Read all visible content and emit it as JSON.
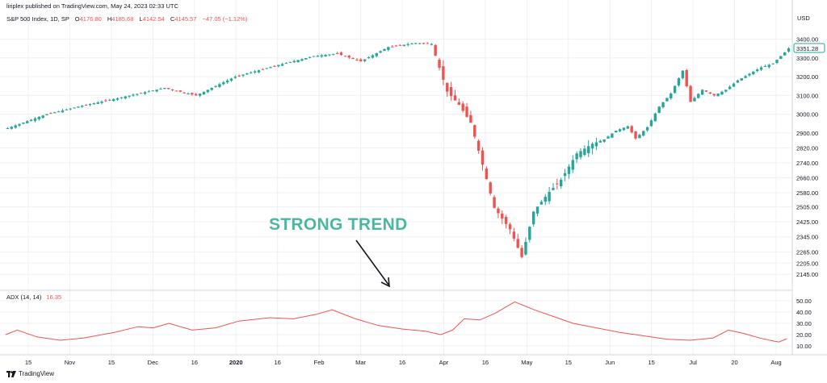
{
  "header": {
    "publisher_line": "liriplex published on TradingView.com, May 24, 2023 02:33 UTC",
    "symbol": "S&P 500 Index, 1D, SP",
    "ohlc": [
      {
        "label": "O",
        "value": "4176.80"
      },
      {
        "label": "H",
        "value": "4185.68"
      },
      {
        "label": "L",
        "value": "4142.54"
      },
      {
        "label": "C",
        "value": "4145.57"
      },
      {
        "label": "",
        "value": "−47.05 (−1.12%)"
      }
    ]
  },
  "annotation": {
    "text": "STRONG TREND"
  },
  "footer": {
    "brand": "TradingView"
  },
  "colors": {
    "up": "#26a69a",
    "down": "#ef5350",
    "adx_line": "#ef5350",
    "last_price_badge": "#26a69a",
    "annotation": "#4db6a1",
    "arrow": "#131722"
  },
  "chart_data": [
    {
      "type": "candlestick",
      "title": "",
      "currency_label": "USD",
      "y_ticks": [
        "3400.00",
        "3300.00",
        "3200.00",
        "3100.00",
        "3000.00",
        "2900.00",
        "2820.00",
        "2740.00",
        "2660.00",
        "2580.00",
        "2505.00",
        "2425.00",
        "2345.00",
        "2265.00",
        "2205.00",
        "2145.00"
      ],
      "last_price": "3351.28",
      "ylim": [
        2120,
        3420
      ],
      "x_labels": [
        "15",
        "Nov",
        "15",
        "Dec",
        "16",
        "2020",
        "16",
        "Feb",
        "Mar",
        "16",
        "Apr",
        "16",
        "May",
        "15",
        "Jun",
        "15",
        "Jul",
        "20",
        "Aug"
      ],
      "bold_x_labels": [
        "2020"
      ],
      "candle_count": 200,
      "closes_anchor": [
        {
          "i": 0,
          "v": 2925
        },
        {
          "i": 10,
          "v": 3000
        },
        {
          "i": 18,
          "v": 3040
        },
        {
          "i": 29,
          "v": 3090
        },
        {
          "i": 40,
          "v": 3140
        },
        {
          "i": 48,
          "v": 3100
        },
        {
          "i": 58,
          "v": 3200
        },
        {
          "i": 68,
          "v": 3257
        },
        {
          "i": 78,
          "v": 3310
        },
        {
          "i": 84,
          "v": 3323
        },
        {
          "i": 90,
          "v": 3282
        },
        {
          "i": 97,
          "v": 3358
        },
        {
          "i": 104,
          "v": 3380
        },
        {
          "i": 108,
          "v": 3375
        },
        {
          "i": 112,
          "v": 3120
        },
        {
          "i": 115,
          "v": 3050
        },
        {
          "i": 118,
          "v": 2954
        },
        {
          "i": 121,
          "v": 2730
        },
        {
          "i": 124,
          "v": 2500
        },
        {
          "i": 128,
          "v": 2385
        },
        {
          "i": 131,
          "v": 2237
        },
        {
          "i": 134,
          "v": 2480
        },
        {
          "i": 138,
          "v": 2585
        },
        {
          "i": 141,
          "v": 2650
        },
        {
          "i": 145,
          "v": 2790
        },
        {
          "i": 149,
          "v": 2842
        },
        {
          "i": 152,
          "v": 2865
        },
        {
          "i": 155,
          "v": 2912
        },
        {
          "i": 158,
          "v": 2935
        },
        {
          "i": 160,
          "v": 2870
        },
        {
          "i": 163,
          "v": 2930
        },
        {
          "i": 166,
          "v": 3040
        },
        {
          "i": 169,
          "v": 3110
        },
        {
          "i": 172,
          "v": 3232
        },
        {
          "i": 174,
          "v": 3065
        },
        {
          "i": 177,
          "v": 3130
        },
        {
          "i": 180,
          "v": 3100
        },
        {
          "i": 183,
          "v": 3130
        },
        {
          "i": 186,
          "v": 3180
        },
        {
          "i": 189,
          "v": 3215
        },
        {
          "i": 192,
          "v": 3250
        },
        {
          "i": 195,
          "v": 3270
        },
        {
          "i": 198,
          "v": 3330
        },
        {
          "i": 199,
          "v": 3351
        }
      ]
    },
    {
      "type": "line",
      "name": "ADX (14, 14)",
      "last_value": "16.35",
      "y_ticks": [
        "50.00",
        "40.00",
        "30.00",
        "20.00",
        "10.00"
      ],
      "ylim": [
        5,
        55
      ],
      "points": [
        {
          "x": 0,
          "y": 20
        },
        {
          "x": 3,
          "y": 24
        },
        {
          "x": 8,
          "y": 18
        },
        {
          "x": 14,
          "y": 15
        },
        {
          "x": 20,
          "y": 17
        },
        {
          "x": 28,
          "y": 22
        },
        {
          "x": 34,
          "y": 27
        },
        {
          "x": 38,
          "y": 26
        },
        {
          "x": 42,
          "y": 30
        },
        {
          "x": 48,
          "y": 24
        },
        {
          "x": 54,
          "y": 26
        },
        {
          "x": 60,
          "y": 32
        },
        {
          "x": 68,
          "y": 35
        },
        {
          "x": 74,
          "y": 34
        },
        {
          "x": 80,
          "y": 38
        },
        {
          "x": 84,
          "y": 42
        },
        {
          "x": 90,
          "y": 34
        },
        {
          "x": 96,
          "y": 28
        },
        {
          "x": 102,
          "y": 25
        },
        {
          "x": 108,
          "y": 23
        },
        {
          "x": 112,
          "y": 20
        },
        {
          "x": 115,
          "y": 24
        },
        {
          "x": 118,
          "y": 34
        },
        {
          "x": 122,
          "y": 33
        },
        {
          "x": 126,
          "y": 39
        },
        {
          "x": 131,
          "y": 49
        },
        {
          "x": 136,
          "y": 42
        },
        {
          "x": 141,
          "y": 36
        },
        {
          "x": 146,
          "y": 30
        },
        {
          "x": 152,
          "y": 26
        },
        {
          "x": 158,
          "y": 22
        },
        {
          "x": 164,
          "y": 19
        },
        {
          "x": 170,
          "y": 16
        },
        {
          "x": 176,
          "y": 15
        },
        {
          "x": 182,
          "y": 17
        },
        {
          "x": 186,
          "y": 24
        },
        {
          "x": 190,
          "y": 21
        },
        {
          "x": 194,
          "y": 17
        },
        {
          "x": 198,
          "y": 14
        },
        {
          "x": 199,
          "y": 13.5
        },
        {
          "x": 201,
          "y": 16.35
        }
      ]
    }
  ]
}
